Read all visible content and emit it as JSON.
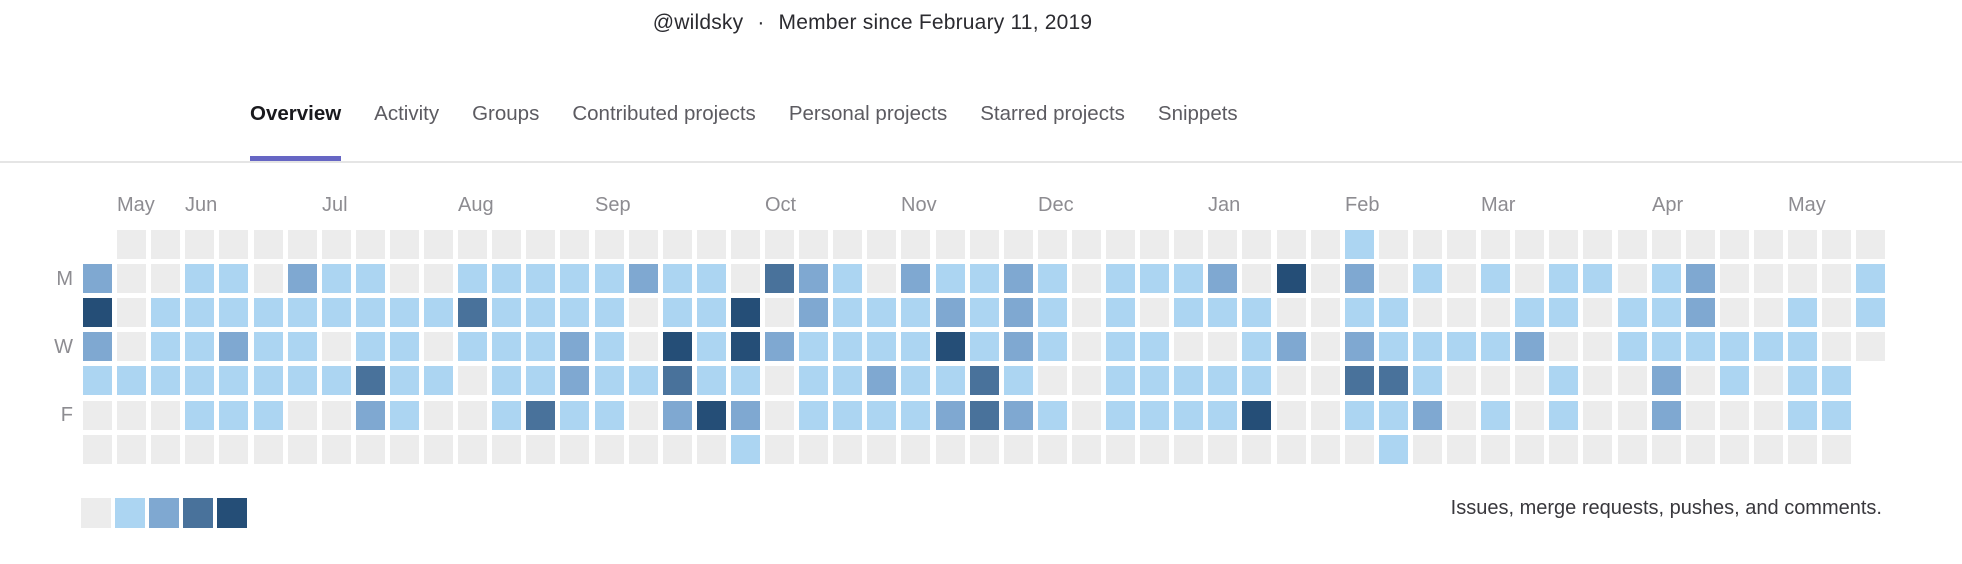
{
  "header": {
    "username": "@wildsky",
    "separator": "·",
    "member_since": "Member since February 11, 2019"
  },
  "tabs": [
    {
      "label": "Overview",
      "active": true
    },
    {
      "label": "Activity",
      "active": false
    },
    {
      "label": "Groups",
      "active": false
    },
    {
      "label": "Contributed projects",
      "active": false
    },
    {
      "label": "Personal projects",
      "active": false
    },
    {
      "label": "Starred projects",
      "active": false
    },
    {
      "label": "Snippets",
      "active": false
    }
  ],
  "accent_color": "#6666c4",
  "chart_data": {
    "type": "heatmap",
    "description": "Contribution calendar; columns are weeks, rows are days Sun-Sat; levels 0 (none) to 4 (most); null = no cell",
    "row_order": [
      "Sun",
      "Mon",
      "Tue",
      "Wed",
      "Thu",
      "Fri",
      "Sat"
    ],
    "day_labels": [
      {
        "label": "M",
        "row": 1
      },
      {
        "label": "W",
        "row": 3
      },
      {
        "label": "F",
        "row": 5
      }
    ],
    "month_labels": [
      {
        "label": "May",
        "col": 2
      },
      {
        "label": "Jun",
        "col": 4
      },
      {
        "label": "Jul",
        "col": 8
      },
      {
        "label": "Aug",
        "col": 12
      },
      {
        "label": "Sep",
        "col": 16
      },
      {
        "label": "Oct",
        "col": 21
      },
      {
        "label": "Nov",
        "col": 25
      },
      {
        "label": "Dec",
        "col": 29
      },
      {
        "label": "Jan",
        "col": 34
      },
      {
        "label": "Feb",
        "col": 38
      },
      {
        "label": "Mar",
        "col": 42
      },
      {
        "label": "Apr",
        "col": 47
      },
      {
        "label": "May",
        "col": 51
      }
    ],
    "palette": [
      "#ececec",
      "#acd5f2",
      "#7fa8d1",
      "#49729b",
      "#254e77"
    ],
    "grid": [
      [
        null,
        2,
        4,
        2,
        1,
        0,
        0
      ],
      [
        0,
        0,
        0,
        0,
        1,
        0,
        0
      ],
      [
        0,
        0,
        1,
        1,
        1,
        0,
        0
      ],
      [
        0,
        1,
        1,
        1,
        1,
        1,
        0
      ],
      [
        0,
        1,
        1,
        2,
        1,
        1,
        0
      ],
      [
        0,
        0,
        1,
        1,
        1,
        1,
        0
      ],
      [
        0,
        2,
        1,
        1,
        1,
        0,
        0
      ],
      [
        0,
        1,
        1,
        0,
        1,
        0,
        0
      ],
      [
        0,
        1,
        1,
        1,
        3,
        2,
        0
      ],
      [
        0,
        0,
        1,
        1,
        1,
        1,
        0
      ],
      [
        0,
        0,
        1,
        0,
        1,
        0,
        0
      ],
      [
        0,
        1,
        3,
        1,
        0,
        0,
        0
      ],
      [
        0,
        1,
        1,
        1,
        1,
        1,
        0
      ],
      [
        0,
        1,
        1,
        1,
        1,
        3,
        0
      ],
      [
        0,
        1,
        1,
        2,
        2,
        1,
        0
      ],
      [
        0,
        1,
        1,
        1,
        1,
        1,
        0
      ],
      [
        0,
        2,
        0,
        0,
        1,
        0,
        0
      ],
      [
        0,
        1,
        1,
        4,
        3,
        2,
        0
      ],
      [
        0,
        1,
        1,
        1,
        1,
        4,
        0
      ],
      [
        0,
        0,
        4,
        4,
        1,
        2,
        1
      ],
      [
        0,
        3,
        0,
        2,
        0,
        0,
        0
      ],
      [
        0,
        2,
        2,
        1,
        1,
        1,
        0
      ],
      [
        0,
        1,
        1,
        1,
        1,
        1,
        0
      ],
      [
        0,
        0,
        1,
        1,
        2,
        1,
        0
      ],
      [
        0,
        2,
        1,
        1,
        1,
        1,
        0
      ],
      [
        0,
        1,
        2,
        4,
        1,
        2,
        0
      ],
      [
        0,
        1,
        1,
        1,
        3,
        3,
        0
      ],
      [
        0,
        2,
        2,
        2,
        1,
        2,
        0
      ],
      [
        0,
        1,
        1,
        1,
        0,
        1,
        0
      ],
      [
        0,
        0,
        0,
        0,
        0,
        0,
        0
      ],
      [
        0,
        1,
        1,
        1,
        1,
        1,
        0
      ],
      [
        0,
        1,
        0,
        1,
        1,
        1,
        0
      ],
      [
        0,
        1,
        1,
        0,
        1,
        1,
        0
      ],
      [
        0,
        2,
        1,
        0,
        1,
        1,
        0
      ],
      [
        0,
        0,
        1,
        1,
        1,
        4,
        0
      ],
      [
        0,
        4,
        0,
        2,
        0,
        0,
        0
      ],
      [
        0,
        0,
        0,
        0,
        0,
        0,
        0
      ],
      [
        1,
        2,
        1,
        2,
        3,
        1,
        0
      ],
      [
        0,
        0,
        1,
        1,
        3,
        1,
        1
      ],
      [
        0,
        1,
        0,
        1,
        1,
        2,
        0
      ],
      [
        0,
        0,
        0,
        1,
        0,
        0,
        0
      ],
      [
        0,
        1,
        0,
        1,
        0,
        1,
        0
      ],
      [
        0,
        0,
        1,
        2,
        0,
        0,
        0
      ],
      [
        0,
        1,
        1,
        0,
        1,
        1,
        0
      ],
      [
        0,
        1,
        0,
        0,
        0,
        0,
        0
      ],
      [
        0,
        0,
        1,
        1,
        0,
        0,
        0
      ],
      [
        0,
        1,
        1,
        1,
        2,
        2,
        0
      ],
      [
        0,
        2,
        2,
        1,
        0,
        0,
        0
      ],
      [
        0,
        0,
        0,
        1,
        1,
        0,
        0
      ],
      [
        0,
        0,
        0,
        1,
        0,
        0,
        0
      ],
      [
        0,
        0,
        1,
        1,
        1,
        1,
        0
      ],
      [
        0,
        0,
        0,
        0,
        1,
        1,
        0
      ],
      [
        0,
        1,
        1,
        0,
        null,
        null,
        null
      ]
    ],
    "legend_levels": [
      0,
      1,
      2,
      3,
      4
    ]
  },
  "footer": {
    "caption": "Issues, merge requests, pushes, and comments."
  }
}
